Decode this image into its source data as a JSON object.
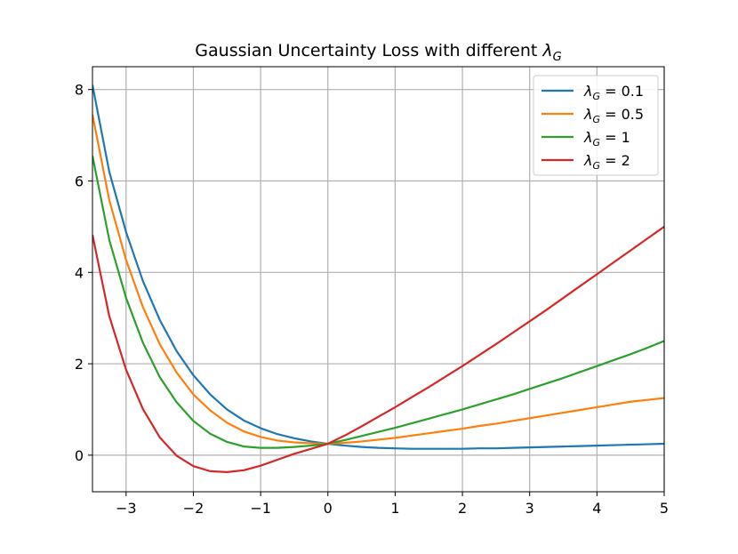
{
  "chart_data": {
    "type": "line",
    "title": "Gaussian Uncertainty Loss with different λ_G",
    "title_plain": "Gaussian Uncertainty Loss with different ",
    "title_symbol": "λ",
    "title_subscript": "G",
    "xlabel": "",
    "ylabel": "",
    "xlim": [
      -3.5,
      5
    ],
    "ylim": [
      -0.8,
      8.5
    ],
    "xticks": [
      -3,
      -2,
      -1,
      0,
      1,
      2,
      3,
      4,
      5
    ],
    "yticks": [
      0,
      2,
      4,
      6,
      8
    ],
    "xtick_labels": [
      "−3",
      "−2",
      "−1",
      "0",
      "1",
      "2",
      "3",
      "4",
      "5"
    ],
    "ytick_labels": [
      "0",
      "2",
      "4",
      "6",
      "8"
    ],
    "grid": true,
    "legend_position": "top-right",
    "x": [
      -3.5,
      -3.25,
      -3.0,
      -2.75,
      -2.5,
      -2.25,
      -2.0,
      -1.75,
      -1.5,
      -1.25,
      -1.0,
      -0.75,
      -0.5,
      -0.25,
      0.0,
      0.25,
      0.5,
      0.75,
      1.0,
      1.25,
      1.5,
      1.75,
      2.0,
      2.25,
      2.5,
      2.75,
      3.0,
      3.25,
      3.5,
      3.75,
      4.0,
      4.25,
      4.5,
      4.75,
      5.0
    ],
    "series": [
      {
        "name": "λ_G = 0.1",
        "lambda_label": "0.1",
        "color": "#1f77b4",
        "values": [
          8.1,
          6.2,
          4.88,
          3.81,
          2.96,
          2.28,
          1.75,
          1.33,
          1.0,
          0.76,
          0.59,
          0.46,
          0.37,
          0.3,
          0.25,
          0.21,
          0.18,
          0.16,
          0.15,
          0.14,
          0.14,
          0.14,
          0.14,
          0.15,
          0.15,
          0.16,
          0.17,
          0.18,
          0.19,
          0.2,
          0.21,
          0.22,
          0.23,
          0.24,
          0.25
        ]
      },
      {
        "name": "λ_G = 0.5",
        "lambda_label": "0.5",
        "color": "#ff7f0e",
        "values": [
          7.45,
          5.58,
          4.27,
          3.24,
          2.43,
          1.81,
          1.33,
          0.98,
          0.71,
          0.52,
          0.4,
          0.32,
          0.28,
          0.26,
          0.25,
          0.27,
          0.3,
          0.34,
          0.38,
          0.43,
          0.48,
          0.53,
          0.58,
          0.64,
          0.69,
          0.75,
          0.81,
          0.87,
          0.93,
          0.99,
          1.05,
          1.11,
          1.17,
          1.21,
          1.25
        ]
      },
      {
        "name": "λ_G = 1",
        "lambda_label": "1",
        "color": "#2ca02c",
        "values": [
          6.55,
          4.71,
          3.44,
          2.46,
          1.71,
          1.16,
          0.75,
          0.47,
          0.29,
          0.19,
          0.16,
          0.16,
          0.18,
          0.21,
          0.25,
          0.33,
          0.42,
          0.51,
          0.6,
          0.7,
          0.8,
          0.9,
          1.0,
          1.11,
          1.22,
          1.33,
          1.45,
          1.57,
          1.69,
          1.82,
          1.95,
          2.08,
          2.21,
          2.35,
          2.5
        ]
      },
      {
        "name": "λ_G = 2",
        "lambda_label": "2",
        "color": "#d62728",
        "values": [
          4.82,
          3.04,
          1.87,
          1.01,
          0.39,
          -0.01,
          -0.24,
          -0.35,
          -0.37,
          -0.33,
          -0.23,
          -0.1,
          0.03,
          0.14,
          0.25,
          0.43,
          0.63,
          0.84,
          1.05,
          1.27,
          1.49,
          1.72,
          1.95,
          2.19,
          2.43,
          2.68,
          2.93,
          3.18,
          3.44,
          3.7,
          3.96,
          4.22,
          4.48,
          4.74,
          5.0
        ]
      }
    ]
  },
  "legend": {
    "symbol": "λ",
    "subscript": "G",
    "equals": " = "
  }
}
